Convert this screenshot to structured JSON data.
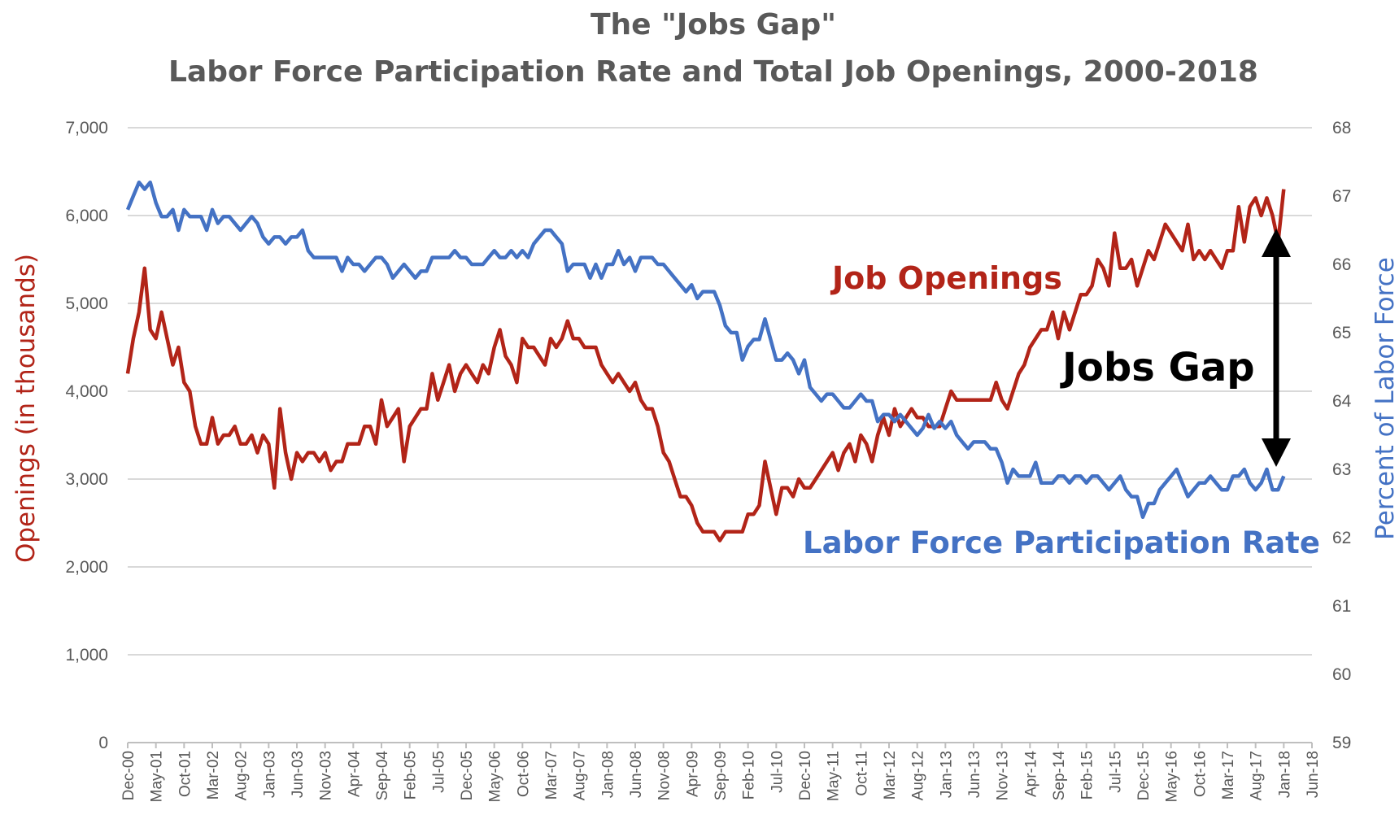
{
  "chart_data": {
    "type": "line",
    "title": "The \"Jobs Gap\"",
    "subtitle": "Labor Force Participation Rate and Total Job Openings, 2000-2018",
    "ylabel_left": "Openings (in thousands)",
    "ylabel_right": "Percent of Labor Force",
    "ylim_left": [
      0,
      7000
    ],
    "ylim_right": [
      59,
      68
    ],
    "yticks_left": [
      "0",
      "1,000",
      "2,000",
      "3,000",
      "4,000",
      "5,000",
      "6,000",
      "7,000"
    ],
    "yticks_right": [
      "59",
      "60",
      "61",
      "62",
      "63",
      "64",
      "65",
      "66",
      "67",
      "68"
    ],
    "x_start": "Dec-00",
    "x_unit": "month",
    "x_range_months": [
      0,
      210
    ],
    "xticks": [
      "Dec-00",
      "May-01",
      "Oct-01",
      "Mar-02",
      "Aug-02",
      "Jan-03",
      "Jun-03",
      "Nov-03",
      "Apr-04",
      "Sep-04",
      "Feb-05",
      "Jul-05",
      "Dec-05",
      "May-06",
      "Oct-06",
      "Mar-07",
      "Aug-07",
      "Jan-08",
      "Jun-08",
      "Nov-08",
      "Apr-09",
      "Sep-09",
      "Feb-10",
      "Jul-10",
      "Dec-10",
      "May-11",
      "Oct-11",
      "Mar-12",
      "Aug-12",
      "Jan-13",
      "Jun-13",
      "Nov-13",
      "Apr-14",
      "Sep-14",
      "Feb-15",
      "Jul-15",
      "Dec-15",
      "May-16",
      "Oct-16",
      "Mar-17",
      "Aug-17",
      "Jan-18",
      "Jun-18"
    ],
    "grid": true,
    "colors": {
      "openings": "#B22418",
      "lfpr": "#4472C4",
      "title": "#595959",
      "grid": "#D9D9D9",
      "arrow": "#000000"
    },
    "series": [
      {
        "name": "Job Openings",
        "axis": "left",
        "values": [
          4200,
          4600,
          4900,
          5400,
          4700,
          4600,
          4900,
          4600,
          4300,
          4500,
          4100,
          4000,
          3600,
          3400,
          3400,
          3700,
          3400,
          3500,
          3500,
          3600,
          3400,
          3400,
          3500,
          3300,
          3500,
          3400,
          2900,
          3800,
          3300,
          3000,
          3300,
          3200,
          3300,
          3300,
          3200,
          3300,
          3100,
          3200,
          3200,
          3400,
          3400,
          3400,
          3600,
          3600,
          3400,
          3900,
          3600,
          3700,
          3800,
          3200,
          3600,
          3700,
          3800,
          3800,
          4200,
          3900,
          4100,
          4300,
          4000,
          4200,
          4300,
          4200,
          4100,
          4300,
          4200,
          4500,
          4700,
          4400,
          4300,
          4100,
          4600,
          4500,
          4500,
          4400,
          4300,
          4600,
          4500,
          4600,
          4800,
          4600,
          4600,
          4500,
          4500,
          4500,
          4300,
          4200,
          4100,
          4200,
          4100,
          4000,
          4100,
          3900,
          3800,
          3800,
          3600,
          3300,
          3200,
          3000,
          2800,
          2800,
          2700,
          2500,
          2400,
          2400,
          2400,
          2300,
          2400,
          2400,
          2400,
          2400,
          2600,
          2600,
          2700,
          3200,
          2900,
          2600,
          2900,
          2900,
          2800,
          3000,
          2900,
          2900,
          3000,
          3100,
          3200,
          3300,
          3100,
          3300,
          3400,
          3200,
          3500,
          3400,
          3200,
          3500,
          3700,
          3500,
          3800,
          3600,
          3700,
          3800,
          3700,
          3700,
          3600,
          3600,
          3600,
          3800,
          4000,
          3900,
          3900,
          3900,
          3900,
          3900,
          3900,
          3900,
          4100,
          3900,
          3800,
          4000,
          4200,
          4300,
          4500,
          4600,
          4700,
          4700,
          4900,
          4600,
          4900,
          4700,
          4900,
          5100,
          5100,
          5200,
          5500,
          5400,
          5200,
          5800,
          5400,
          5400,
          5500,
          5200,
          5400,
          5600,
          5500,
          5700,
          5900,
          5800,
          5700,
          5600,
          5900,
          5500,
          5600,
          5500,
          5600,
          5500,
          5400,
          5600,
          5600,
          6100,
          5700,
          6100,
          6200,
          6000,
          6200,
          6000,
          5700,
          6300
        ]
      },
      {
        "name": "Labor Force Participation Rate",
        "axis": "right",
        "values": [
          66.8,
          67.0,
          67.2,
          67.1,
          67.2,
          66.9,
          66.7,
          66.7,
          66.8,
          66.5,
          66.8,
          66.7,
          66.7,
          66.7,
          66.5,
          66.8,
          66.6,
          66.7,
          66.7,
          66.6,
          66.5,
          66.6,
          66.7,
          66.6,
          66.4,
          66.3,
          66.4,
          66.4,
          66.3,
          66.4,
          66.4,
          66.5,
          66.2,
          66.1,
          66.1,
          66.1,
          66.1,
          66.1,
          65.9,
          66.1,
          66.0,
          66.0,
          65.9,
          66.0,
          66.1,
          66.1,
          66.0,
          65.8,
          65.9,
          66.0,
          65.9,
          65.8,
          65.9,
          65.9,
          66.1,
          66.1,
          66.1,
          66.1,
          66.2,
          66.1,
          66.1,
          66.0,
          66.0,
          66.0,
          66.1,
          66.2,
          66.1,
          66.1,
          66.2,
          66.1,
          66.2,
          66.1,
          66.3,
          66.4,
          66.5,
          66.5,
          66.4,
          66.3,
          65.9,
          66.0,
          66.0,
          66.0,
          65.8,
          66.0,
          65.8,
          66.0,
          66.0,
          66.2,
          66.0,
          66.1,
          65.9,
          66.1,
          66.1,
          66.1,
          66.0,
          66.0,
          65.9,
          65.8,
          65.7,
          65.6,
          65.7,
          65.5,
          65.6,
          65.6,
          65.6,
          65.4,
          65.1,
          65.0,
          65.0,
          64.6,
          64.8,
          64.9,
          64.9,
          65.2,
          64.9,
          64.6,
          64.6,
          64.7,
          64.6,
          64.4,
          64.6,
          64.2,
          64.1,
          64.0,
          64.1,
          64.1,
          64.0,
          63.9,
          63.9,
          64.0,
          64.1,
          64.0,
          64.0,
          63.7,
          63.8,
          63.8,
          63.7,
          63.8,
          63.7,
          63.6,
          63.5,
          63.6,
          63.8,
          63.6,
          63.7,
          63.6,
          63.7,
          63.5,
          63.4,
          63.3,
          63.4,
          63.4,
          63.4,
          63.3,
          63.3,
          63.1,
          62.8,
          63.0,
          62.9,
          62.9,
          62.9,
          63.1,
          62.8,
          62.8,
          62.8,
          62.9,
          62.9,
          62.8,
          62.9,
          62.9,
          62.8,
          62.9,
          62.9,
          62.8,
          62.7,
          62.8,
          62.9,
          62.7,
          62.6,
          62.6,
          62.3,
          62.5,
          62.5,
          62.7,
          62.8,
          62.9,
          63.0,
          62.8,
          62.6,
          62.7,
          62.8,
          62.8,
          62.9,
          62.8,
          62.7,
          62.7,
          62.9,
          62.9,
          63.0,
          62.8,
          62.7,
          62.8,
          63.0,
          62.7,
          62.7,
          62.9
        ]
      }
    ],
    "annotations": {
      "openings_label": "Job Openings",
      "gap_label": "Jobs Gap",
      "lfpr_label": "Labor Force Participation Rate"
    }
  }
}
